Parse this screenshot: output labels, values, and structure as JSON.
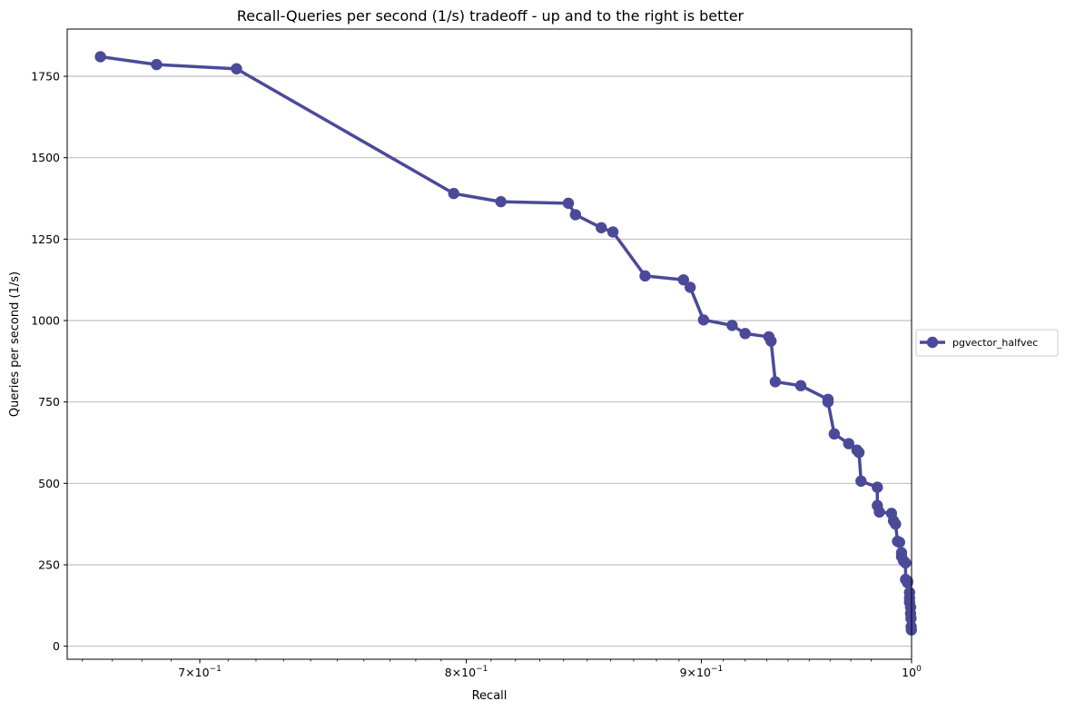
{
  "chart_data": {
    "type": "line",
    "title": "Recall-Queries per second (1/s) tradeoff - up and to the right is better",
    "xlabel": "Recall",
    "ylabel": "Queries per second (1/s)",
    "x_scale": "log",
    "xlim": [
      0.655,
      1.0
    ],
    "ylim": [
      -40,
      1895
    ],
    "x_ticks": [
      {
        "value": 0.7,
        "base": "7×10",
        "exp": "−1"
      },
      {
        "value": 0.8,
        "base": "8×10",
        "exp": "−1"
      },
      {
        "value": 0.9,
        "base": "9×10",
        "exp": "−1"
      },
      {
        "value": 1.0,
        "base": "10",
        "exp": "0"
      }
    ],
    "y_ticks": [
      0,
      250,
      500,
      750,
      1000,
      1250,
      1500,
      1750
    ],
    "y_tick_labels": [
      "0",
      "250",
      "500",
      "750",
      "1000",
      "1250",
      "1500",
      "1750"
    ],
    "grid": "horizontal",
    "legend_position": "right-outside",
    "series": [
      {
        "name": "pgvector_halfvec",
        "color": "#4b4a99",
        "points": [
          [
            0.666,
            1810
          ],
          [
            0.685,
            1786
          ],
          [
            0.713,
            1773
          ],
          [
            0.795,
            1390
          ],
          [
            0.814,
            1365
          ],
          [
            0.842,
            1360
          ],
          [
            0.845,
            1325
          ],
          [
            0.856,
            1285
          ],
          [
            0.861,
            1272
          ],
          [
            0.875,
            1137
          ],
          [
            0.892,
            1125
          ],
          [
            0.895,
            1102
          ],
          [
            0.901,
            1002
          ],
          [
            0.914,
            985
          ],
          [
            0.92,
            960
          ],
          [
            0.931,
            950
          ],
          [
            0.932,
            937
          ],
          [
            0.934,
            812
          ],
          [
            0.946,
            800
          ],
          [
            0.959,
            758
          ],
          [
            0.959,
            750
          ],
          [
            0.962,
            652
          ],
          [
            0.969,
            622
          ],
          [
            0.973,
            602
          ],
          [
            0.974,
            595
          ],
          [
            0.975,
            507
          ],
          [
            0.983,
            488
          ],
          [
            0.983,
            432
          ],
          [
            0.984,
            412
          ],
          [
            0.99,
            408
          ],
          [
            0.991,
            385
          ],
          [
            0.992,
            375
          ],
          [
            0.993,
            322
          ],
          [
            0.994,
            319
          ],
          [
            0.995,
            287
          ],
          [
            0.995,
            275
          ],
          [
            0.996,
            262
          ],
          [
            0.997,
            256
          ],
          [
            0.997,
            205
          ],
          [
            0.998,
            200
          ],
          [
            0.998,
            195
          ],
          [
            0.999,
            165
          ],
          [
            0.999,
            148
          ],
          [
            0.999,
            135
          ],
          [
            0.9995,
            120
          ],
          [
            0.9995,
            100
          ],
          [
            0.9997,
            85
          ],
          [
            0.9998,
            60
          ],
          [
            0.9999,
            50
          ]
        ]
      }
    ]
  }
}
